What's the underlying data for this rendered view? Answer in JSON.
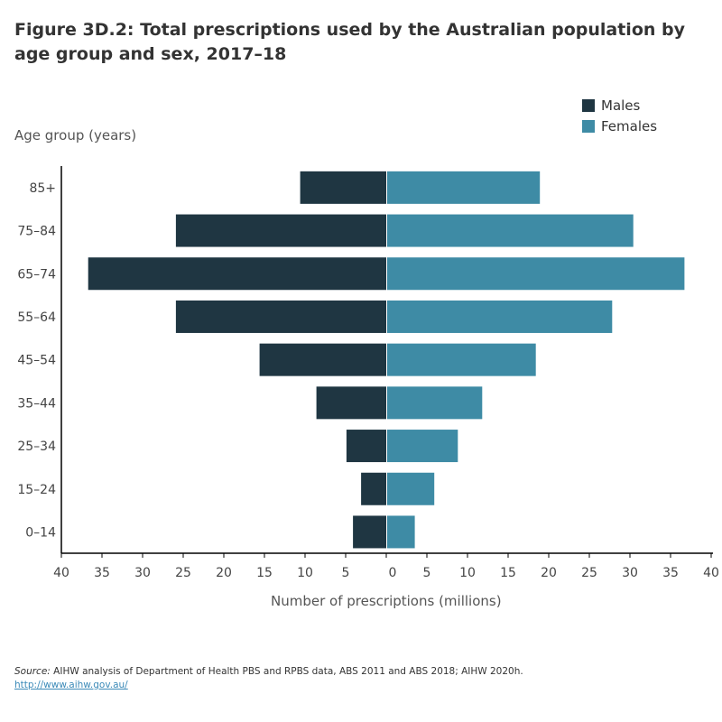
{
  "title": "Figure 3D.2: Total prescriptions used by the Australian population by age group and sex, 2017–18",
  "source_label": "Source:",
  "source_text": " AIHW analysis of Department of Health PBS and RPBS data, ABS 2011 and ABS 2018; AIHW 2020h.",
  "url": "http://www.aihw.gov.au/",
  "chart_data": {
    "type": "bar",
    "orientation": "horizontal population pyramid",
    "ylabel": "Age group (years)",
    "xlabel": "Number of prescriptions (millions)",
    "categories": [
      "85+",
      "75–84",
      "65–74",
      "55–64",
      "45–54",
      "35–44",
      "25–34",
      "15–24",
      "0–14"
    ],
    "xlim": [
      -40,
      40
    ],
    "xticks": [
      40,
      35,
      30,
      25,
      20,
      15,
      10,
      5,
      0,
      5,
      10,
      15,
      20,
      25,
      30,
      35,
      40
    ],
    "legend_position": "top-right",
    "grid": false,
    "series": [
      {
        "name": "Males",
        "color": "#1f3642",
        "values": [
          10.6,
          25.9,
          36.7,
          25.9,
          15.6,
          8.6,
          4.9,
          3.1,
          4.1
        ]
      },
      {
        "name": "Females",
        "color": "#3e8ba5",
        "values": [
          18.8,
          30.3,
          36.6,
          27.7,
          18.3,
          11.7,
          8.7,
          5.8,
          3.4
        ]
      }
    ]
  }
}
